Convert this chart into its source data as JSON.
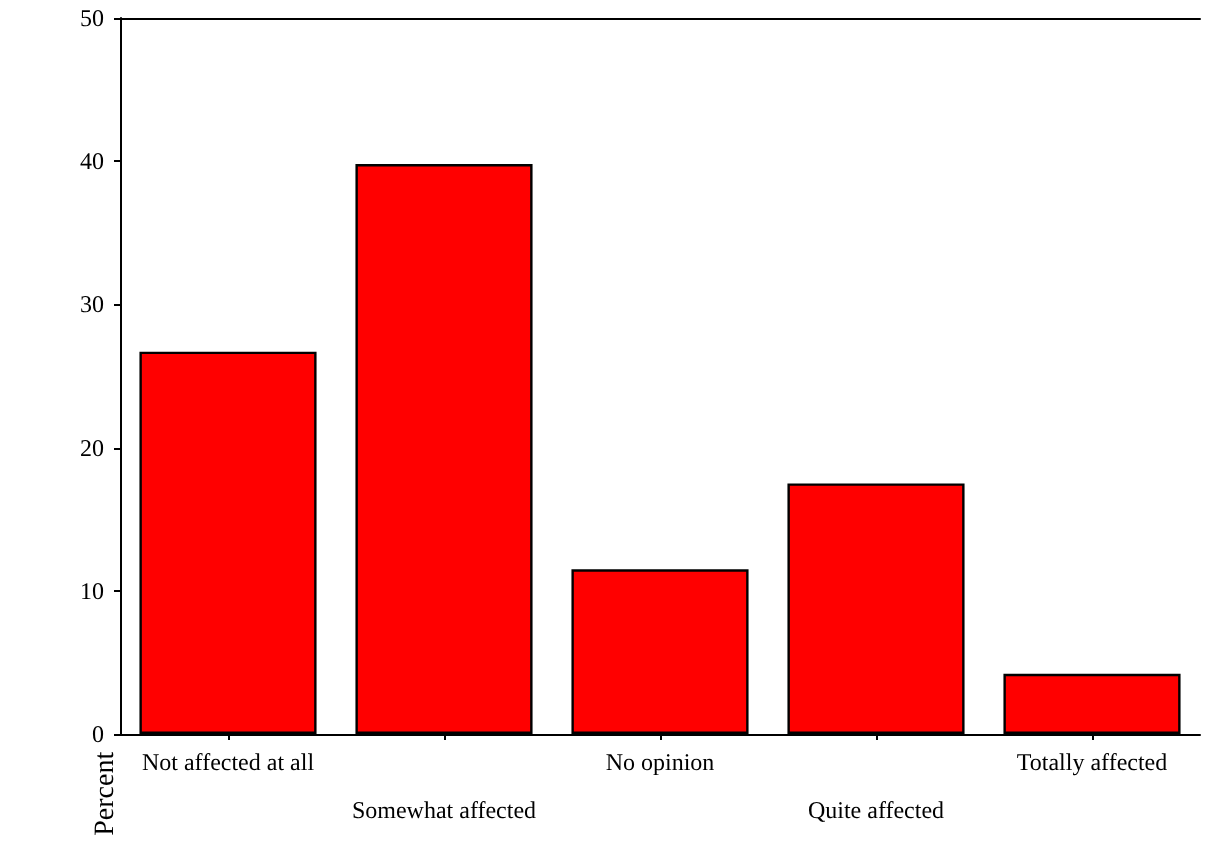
{
  "chart_data": {
    "type": "bar",
    "ylabel": "Percent",
    "categories": [
      "Not affected at all",
      "Somewhat affected",
      "No opinion",
      "Quite affected",
      "Totally affected"
    ],
    "values": [
      26.7,
      39.8,
      11.5,
      17.5,
      4.2
    ],
    "color": "#ff0000",
    "ylim": [
      0,
      50
    ],
    "yticks": [
      0,
      10,
      20,
      30,
      40,
      50
    ],
    "grid": false
  }
}
